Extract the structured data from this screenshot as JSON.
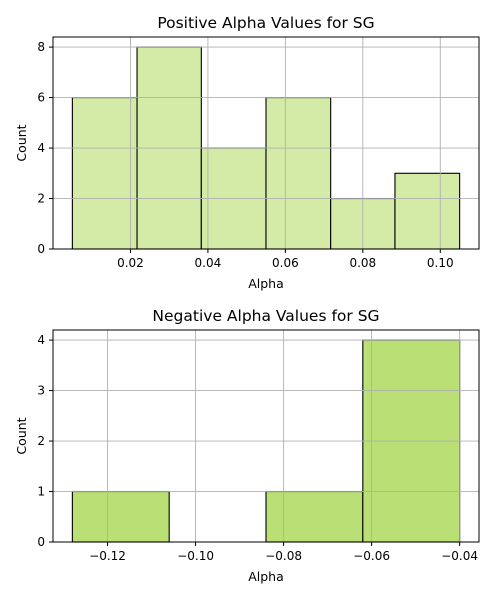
{
  "chart_data": [
    {
      "type": "bar",
      "title": "Positive Alpha Values for SG",
      "xlabel": "Alpha",
      "ylabel": "Count",
      "bin_edges": [
        0.005,
        0.0217,
        0.0383,
        0.055,
        0.0717,
        0.0883,
        0.105
      ],
      "values": [
        6,
        8,
        4,
        6,
        2,
        3
      ],
      "xlim": [
        0.0,
        0.11
      ],
      "ylim": [
        0,
        8.4
      ],
      "xticks": [
        0.02,
        0.04,
        0.06,
        0.08,
        0.1
      ],
      "xtick_labels": [
        "0.02",
        "0.04",
        "0.06",
        "0.08",
        "0.10"
      ],
      "yticks": [
        0,
        2,
        4,
        6,
        8
      ],
      "ytick_labels": [
        "0",
        "2",
        "4",
        "6",
        "8"
      ],
      "bar_color": "#d3eba6",
      "grid": true
    },
    {
      "type": "bar",
      "title": "Negative Alpha Values for SG",
      "xlabel": "Alpha",
      "ylabel": "Count",
      "bin_edges": [
        -0.128,
        -0.106,
        -0.084,
        -0.062,
        -0.04
      ],
      "values": [
        1,
        0,
        1,
        4
      ],
      "xlim": [
        -0.1324,
        -0.0356
      ],
      "ylim": [
        0,
        4.2
      ],
      "xticks": [
        -0.12,
        -0.1,
        -0.08,
        -0.06,
        -0.04
      ],
      "xtick_labels": [
        "−0.12",
        "−0.10",
        "−0.08",
        "−0.06",
        "−0.04"
      ],
      "yticks": [
        0,
        1,
        2,
        3,
        4
      ],
      "ytick_labels": [
        "0",
        "1",
        "2",
        "3",
        "4"
      ],
      "bar_color": "#b9df75",
      "grid": true
    }
  ]
}
